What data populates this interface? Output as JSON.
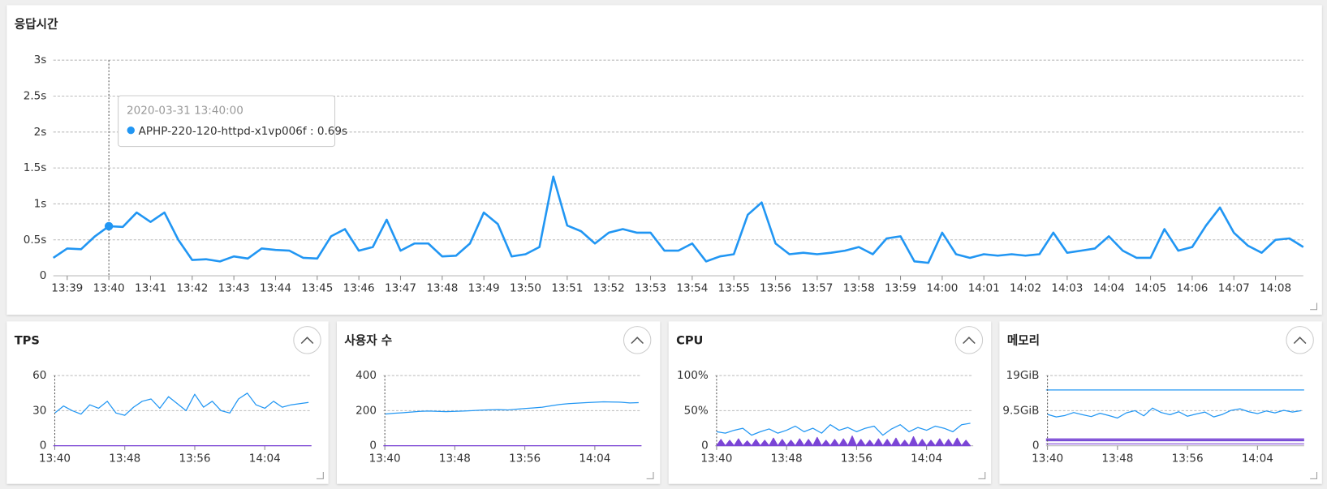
{
  "chart_data": [
    {
      "type": "line",
      "title": "응답시간",
      "ylim": [
        0,
        3
      ],
      "yticks": [
        0,
        {
          "value": 0.5,
          "label": "0.5s"
        },
        {
          "value": 1,
          "label": "1s"
        },
        {
          "value": 1.5,
          "label": "1.5s"
        },
        {
          "value": 2,
          "label": "2s"
        },
        {
          "value": 2.5,
          "label": "2.5s"
        },
        {
          "value": 3,
          "label": "3s"
        }
      ],
      "xlim": [
        "13:38:40",
        "14:08:40"
      ],
      "xticks": [
        "13:39",
        "13:40",
        "13:41",
        "13:42",
        "13:43",
        "13:44",
        "13:45",
        "13:46",
        "13:47",
        "13:48",
        "13:49",
        "13:50",
        "13:51",
        "13:52",
        "13:53",
        "13:54",
        "13:55",
        "13:56",
        "13:57",
        "13:58",
        "13:59",
        "14:00",
        "14:01",
        "14:02",
        "14:03",
        "14:04",
        "14:05",
        "14:06",
        "14:07",
        "14:08"
      ],
      "grid": true,
      "tooltip": {
        "title": "2020-03-31 13:40:00",
        "text": "APHP-220-120-httpd-x1vp006f : 0.69s"
      },
      "series": [
        {
          "color": "#2196f3",
          "width": 2.5,
          "x": [
            "13:38:40",
            "13:39:00",
            "13:39:20",
            "13:39:40",
            "13:40:00",
            "13:40:20",
            "13:40:40",
            "13:41:00",
            "13:41:20",
            "13:41:40",
            "13:42:00",
            "13:42:20",
            "13:42:40",
            "13:43:00",
            "13:43:20",
            "13:43:40",
            "13:44:00",
            "13:44:20",
            "13:44:40",
            "13:45:00",
            "13:45:20",
            "13:45:40",
            "13:46:00",
            "13:46:20",
            "13:46:40",
            "13:47:00",
            "13:47:20",
            "13:47:40",
            "13:48:00",
            "13:48:20",
            "13:48:40",
            "13:49:00",
            "13:49:20",
            "13:49:40",
            "13:50:00",
            "13:50:20",
            "13:50:40",
            "13:51:00",
            "13:51:20",
            "13:51:40",
            "13:52:00",
            "13:52:20",
            "13:52:40",
            "13:53:00",
            "13:53:20",
            "13:53:40",
            "13:54:00",
            "13:54:20",
            "13:54:40",
            "13:55:00",
            "13:55:20",
            "13:55:40",
            "13:56:00",
            "13:56:20",
            "13:56:40",
            "13:57:00",
            "13:57:20",
            "13:57:40",
            "13:58:00",
            "13:58:20",
            "13:58:40",
            "13:59:00",
            "13:59:20",
            "13:59:40",
            "14:00:00",
            "14:00:20",
            "14:00:40",
            "14:01:00",
            "14:01:20",
            "14:01:40",
            "14:02:00",
            "14:02:20",
            "14:02:40",
            "14:03:00",
            "14:03:20",
            "14:03:40",
            "14:04:00",
            "14:04:20",
            "14:04:40",
            "14:05:00",
            "14:05:20",
            "14:05:40",
            "14:06:00",
            "14:06:20",
            "14:06:40",
            "14:07:00",
            "14:07:20",
            "14:07:40",
            "14:08:00",
            "14:08:20",
            "14:08:40"
          ],
          "values": [
            0.25,
            0.38,
            0.37,
            0.55,
            0.69,
            0.68,
            0.88,
            0.75,
            0.88,
            0.5,
            0.22,
            0.23,
            0.2,
            0.27,
            0.24,
            0.38,
            0.36,
            0.35,
            0.25,
            0.24,
            0.55,
            0.65,
            0.35,
            0.4,
            0.78,
            0.35,
            0.45,
            0.45,
            0.27,
            0.28,
            0.45,
            0.88,
            0.72,
            0.27,
            0.3,
            0.4,
            1.38,
            0.7,
            0.62,
            0.45,
            0.6,
            0.65,
            0.6,
            0.6,
            0.35,
            0.35,
            0.45,
            0.2,
            0.27,
            0.3,
            0.85,
            1.02,
            0.45,
            0.3,
            0.32,
            0.3,
            0.32,
            0.35,
            0.4,
            0.3,
            0.52,
            0.55,
            0.2,
            0.18,
            0.6,
            0.3,
            0.25,
            0.3,
            0.28,
            0.3,
            0.28,
            0.3,
            0.6,
            0.32,
            0.35,
            0.38,
            0.55,
            0.35,
            0.25,
            0.25,
            0.65,
            0.35,
            0.4,
            0.7,
            0.95,
            0.6,
            0.42,
            0.32,
            0.5,
            0.52,
            0.4
          ]
        }
      ]
    },
    {
      "type": "line",
      "title": "TPS",
      "ylim": [
        0,
        60
      ],
      "yticks": [
        0,
        30,
        60
      ],
      "xlim": [
        "13:39:50",
        "14:09:20"
      ],
      "xticks": [
        "13:40",
        "13:48",
        "13:56",
        "14:04"
      ],
      "grid": true,
      "series": [
        {
          "color": "#2196f3",
          "width": 1.2,
          "x": [
            "13:40",
            "13:41",
            "13:42",
            "13:43",
            "13:44",
            "13:45",
            "13:46",
            "13:47",
            "13:48",
            "13:49",
            "13:50",
            "13:51",
            "13:52",
            "13:53",
            "13:54",
            "13:55",
            "13:56",
            "13:57",
            "13:58",
            "13:59",
            "14:00",
            "14:01",
            "14:02",
            "14:03",
            "14:04",
            "14:05",
            "14:06",
            "14:07",
            "14:08",
            "14:09"
          ],
          "values": [
            28,
            34,
            30,
            27,
            35,
            32,
            38,
            28,
            26,
            33,
            38,
            40,
            32,
            42,
            36,
            30,
            44,
            33,
            38,
            30,
            28,
            40,
            45,
            35,
            32,
            38,
            33,
            35,
            36,
            37
          ]
        },
        {
          "color": "#7b45d6",
          "width": 1.2,
          "x": [
            "13:39:50",
            "14:09:20"
          ],
          "values": [
            0,
            0
          ]
        }
      ]
    },
    {
      "type": "line",
      "title": "사용자 수",
      "ylim": [
        0,
        400
      ],
      "yticks": [
        0,
        200,
        400
      ],
      "xlim": [
        "13:39:50",
        "14:09:20"
      ],
      "xticks": [
        "13:40",
        "13:48",
        "13:56",
        "14:04"
      ],
      "grid": true,
      "series": [
        {
          "color": "#2196f3",
          "width": 1.2,
          "x": [
            "13:40",
            "13:41",
            "13:42",
            "13:43",
            "13:44",
            "13:45",
            "13:46",
            "13:47",
            "13:48",
            "13:49",
            "13:50",
            "13:51",
            "13:52",
            "13:53",
            "13:54",
            "13:55",
            "13:56",
            "13:57",
            "13:58",
            "13:59",
            "14:00",
            "14:01",
            "14:02",
            "14:03",
            "14:04",
            "14:05",
            "14:06",
            "14:07",
            "14:08",
            "14:09"
          ],
          "values": [
            180,
            185,
            188,
            192,
            196,
            198,
            196,
            194,
            196,
            198,
            200,
            203,
            205,
            206,
            204,
            208,
            212,
            216,
            220,
            228,
            235,
            240,
            243,
            246,
            248,
            250,
            249,
            248,
            244,
            246
          ]
        },
        {
          "color": "#7b45d6",
          "width": 1.2,
          "x": [
            "13:39:50",
            "14:09:20"
          ],
          "values": [
            0,
            0
          ]
        }
      ]
    },
    {
      "type": "line",
      "title": "CPU",
      "ylim": [
        0,
        100
      ],
      "yticks": [
        0,
        {
          "value": 50,
          "label": "50%"
        },
        {
          "value": 100,
          "label": "100%"
        }
      ],
      "xlim": [
        "13:39:50",
        "14:09:20"
      ],
      "xticks": [
        "13:40",
        "13:48",
        "13:56",
        "14:04"
      ],
      "grid": true,
      "series": [
        {
          "color": "#2196f3",
          "width": 1.2,
          "x": [
            "13:40",
            "13:41",
            "13:42",
            "13:43",
            "13:44",
            "13:45",
            "13:46",
            "13:47",
            "13:48",
            "13:49",
            "13:50",
            "13:51",
            "13:52",
            "13:53",
            "13:54",
            "13:55",
            "13:56",
            "13:57",
            "13:58",
            "13:59",
            "14:00",
            "14:01",
            "14:02",
            "14:03",
            "14:04",
            "14:05",
            "14:06",
            "14:07",
            "14:08",
            "14:09"
          ],
          "values": [
            20,
            18,
            22,
            25,
            15,
            20,
            24,
            18,
            22,
            28,
            20,
            25,
            18,
            30,
            22,
            26,
            20,
            25,
            28,
            15,
            24,
            30,
            20,
            26,
            22,
            28,
            25,
            20,
            30,
            32
          ]
        },
        {
          "color": "#7b45d6",
          "width": 1,
          "fill": true,
          "x": [
            "13:40",
            "13:40:30",
            "13:41",
            "13:41:30",
            "13:42",
            "13:42:30",
            "13:43",
            "13:43:30",
            "13:44",
            "13:44:30",
            "13:45",
            "13:45:30",
            "13:46",
            "13:46:30",
            "13:47",
            "13:47:30",
            "13:48",
            "13:48:30",
            "13:49",
            "13:49:30",
            "13:50",
            "13:50:30",
            "13:51",
            "13:51:30",
            "13:52",
            "13:52:30",
            "13:53",
            "13:53:30",
            "13:54",
            "13:54:30",
            "13:55",
            "13:55:30",
            "13:56",
            "13:56:30",
            "13:57",
            "13:57:30",
            "13:58",
            "13:58:30",
            "13:59",
            "13:59:30",
            "14:00",
            "14:00:30",
            "14:01",
            "14:01:30",
            "14:02",
            "14:02:30",
            "14:03",
            "14:03:30",
            "14:04",
            "14:04:30",
            "14:05",
            "14:05:30",
            "14:06",
            "14:06:30",
            "14:07",
            "14:07:30",
            "14:08",
            "14:08:30",
            "14:09"
          ],
          "values": [
            0,
            9,
            0,
            8,
            0,
            10,
            0,
            7,
            0,
            9,
            0,
            8,
            0,
            11,
            0,
            9,
            0,
            8,
            0,
            10,
            0,
            9,
            0,
            12,
            0,
            8,
            0,
            9,
            0,
            10,
            0,
            14,
            0,
            9,
            0,
            8,
            0,
            10,
            0,
            9,
            0,
            11,
            0,
            8,
            0,
            13,
            0,
            9,
            0,
            8,
            0,
            10,
            0,
            9,
            0,
            11,
            0,
            8,
            0
          ]
        }
      ]
    },
    {
      "type": "line",
      "title": "메모리",
      "ylim": [
        0,
        19
      ],
      "yticks": [
        0,
        {
          "value": 9.5,
          "label": "9.5GiB"
        },
        {
          "value": 19,
          "label": "19GiB"
        }
      ],
      "xlim": [
        "13:39:50",
        "14:09:20"
      ],
      "xticks": [
        "13:40",
        "13:48",
        "13:56",
        "14:04"
      ],
      "grid": true,
      "series": [
        {
          "color": "#2196f3",
          "width": 1.2,
          "x": [
            "13:39:50",
            "14:09:20"
          ],
          "values": [
            15.1,
            15.1
          ]
        },
        {
          "color": "#2196f3",
          "width": 1.2,
          "x": [
            "13:40",
            "13:41",
            "13:42",
            "13:43",
            "13:44",
            "13:45",
            "13:46",
            "13:47",
            "13:48",
            "13:49",
            "13:50",
            "13:51",
            "13:52",
            "13:53",
            "13:54",
            "13:55",
            "13:56",
            "13:57",
            "13:58",
            "13:59",
            "14:00",
            "14:01",
            "14:02",
            "14:03",
            "14:04",
            "14:05",
            "14:06",
            "14:07",
            "14:08",
            "14:09"
          ],
          "values": [
            8.5,
            7.8,
            8.2,
            9.0,
            8.4,
            7.9,
            8.8,
            8.2,
            7.5,
            8.9,
            9.5,
            8.1,
            10.2,
            9.0,
            8.4,
            9.2,
            8.0,
            8.6,
            9.1,
            7.8,
            8.5,
            9.6,
            10.0,
            9.2,
            8.7,
            9.4,
            8.9,
            9.6,
            9.1,
            9.5
          ]
        },
        {
          "color": "#7b45d6",
          "width": 1.5,
          "x": [
            "13:39:50",
            "14:09:20"
          ],
          "values": [
            1.8,
            1.8
          ]
        },
        {
          "color": "#6a3fd0",
          "width": 1.5,
          "x": [
            "13:39:50",
            "14:09:20"
          ],
          "values": [
            1.4,
            1.4
          ]
        },
        {
          "color": "#9b6ee0",
          "width": 1.5,
          "x": [
            "13:39:50",
            "14:09:20"
          ],
          "values": [
            0.5,
            0.5
          ]
        }
      ]
    }
  ]
}
